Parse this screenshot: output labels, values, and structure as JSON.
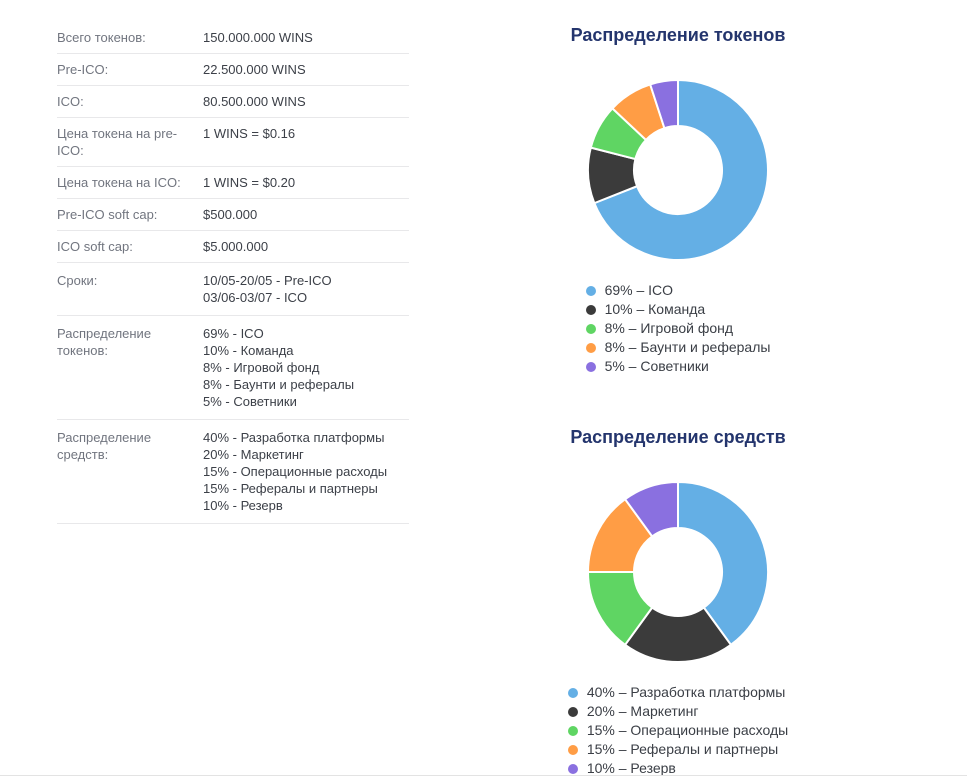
{
  "table": {
    "rows": [
      {
        "label": "Всего токенов:",
        "values": [
          "150.000.000 WINS"
        ]
      },
      {
        "label": "Pre-ICO:",
        "values": [
          "22.500.000 WINS"
        ]
      },
      {
        "label": "ICO:",
        "values": [
          "80.500.000 WINS"
        ]
      },
      {
        "label": "Цена токена на pre-ICO:",
        "values": [
          "1 WINS = $0.16"
        ]
      },
      {
        "label": "Цена токена на ICO:",
        "values": [
          "1 WINS = $0.20"
        ]
      },
      {
        "label": "Pre-ICO soft cap:",
        "values": [
          "$500.000"
        ]
      },
      {
        "label": "ICO soft cap:",
        "values": [
          "$5.000.000"
        ]
      },
      {
        "label": "Сроки:",
        "values": [
          "10/05-20/05 - Pre-ICO",
          "03/06-03/07 - ICO"
        ]
      },
      {
        "label": "Распределение токенов:",
        "values": [
          "69% - ICO",
          "10% - Команда",
          "8% - Игровой фонд",
          "8% - Баунти и рефералы",
          "5% - Советники"
        ]
      },
      {
        "label": "Распределение средств:",
        "values": [
          "40% - Разработка платформы",
          "20% - Маркетинг",
          "15% - Операционные расходы",
          "15% - Рефералы и партнеры",
          "10% - Резерв"
        ]
      }
    ]
  },
  "chart_data": [
    {
      "type": "pie",
      "subtype": "donut",
      "title": "Распределение токенов",
      "labels": [
        "ICO",
        "Команда",
        "Игровой фонд",
        "Баунти и рефералы",
        "Советники"
      ],
      "values": [
        69,
        10,
        8,
        8,
        5
      ],
      "unit": "%",
      "colors": [
        "#64afe5",
        "#3b3b3b",
        "#5fd563",
        "#ff9d45",
        "#8a70e0"
      ],
      "legend": [
        "69% – ICO",
        "10% – Команда",
        "8% – Игровой фонд",
        "8% – Баунти и рефералы",
        "5% – Советники"
      ],
      "legend_position": "bottom",
      "start_angle_deg": 0,
      "direction": "clockwise"
    },
    {
      "type": "pie",
      "subtype": "donut",
      "title": "Распределение средств",
      "labels": [
        "Разработка платформы",
        "Маркетинг",
        "Операционные расходы",
        "Рефералы и партнеры",
        "Резерв"
      ],
      "values": [
        40,
        20,
        15,
        15,
        10
      ],
      "unit": "%",
      "colors": [
        "#64afe5",
        "#3b3b3b",
        "#5fd563",
        "#ff9d45",
        "#8a70e0"
      ],
      "legend": [
        "40% – Разработка платформы",
        "20% – Маркетинг",
        "15% – Операционные расходы",
        "15% – Рефералы и партнеры",
        "10% – Резерв"
      ],
      "legend_position": "bottom",
      "start_angle_deg": 0,
      "direction": "clockwise"
    }
  ]
}
